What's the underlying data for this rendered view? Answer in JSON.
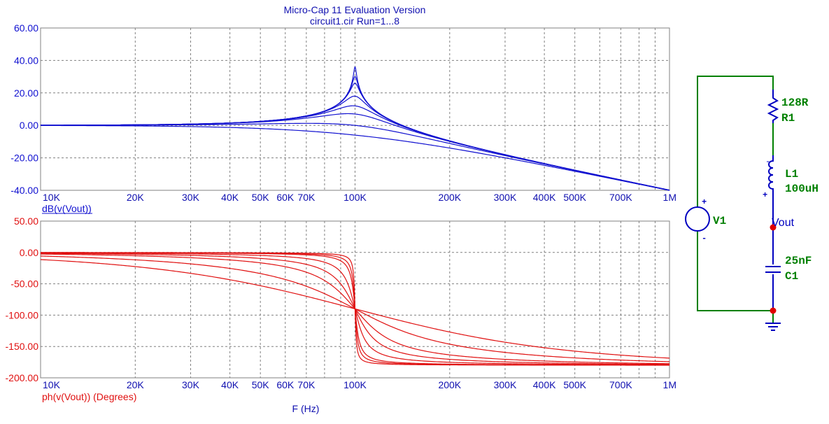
{
  "header": {
    "title": "Micro-Cap 11 Evaluation Version",
    "subtitle": "circuit1.cir Run=1...8"
  },
  "colors": {
    "magnitude": "#1010d0",
    "phase": "#e01010",
    "axis_text_blue": "#1010b0",
    "schematic_wire": "#008000",
    "schematic_part": "#0000c0",
    "node_dot": "#e00000",
    "grid": "#808080"
  },
  "chart_data": [
    {
      "type": "line",
      "name": "magnitude-plot",
      "ylabel": "dB(v(Vout))",
      "xscale": "log",
      "xlim": [
        10000,
        1000000
      ],
      "ylim": [
        -40,
        60
      ],
      "ytick_labels": [
        "60.00",
        "40.00",
        "20.00",
        "0.00",
        "-20.00",
        "-40.00"
      ],
      "xticks": [
        10000,
        20000,
        30000,
        40000,
        50000,
        60000,
        70000,
        100000,
        200000,
        300000,
        400000,
        500000,
        700000,
        1000000
      ],
      "xtick_labels": [
        "10K",
        "20K",
        "30K",
        "40K",
        "50K",
        "60K",
        "70K",
        "100K",
        "200K",
        "300K",
        "400K",
        "500K",
        "700K",
        "1M"
      ],
      "grid": true,
      "series_params": {
        "model": "series RLC low-pass, f0 = 100K",
        "peak_db_at_100K": [
          36,
          30,
          26,
          18,
          12,
          7,
          0,
          -6
        ]
      }
    },
    {
      "type": "line",
      "name": "phase-plot",
      "ylabel": "ph(v(Vout)) (Degrees)",
      "xlabel": "F (Hz)",
      "xscale": "log",
      "xlim": [
        10000,
        1000000
      ],
      "ylim": [
        -200,
        50
      ],
      "ytick_labels": [
        "50.00",
        "0.00",
        "-50.00",
        "-100.00",
        "-150.00",
        "-200.00"
      ],
      "xticks": [
        10000,
        20000,
        30000,
        40000,
        50000,
        60000,
        70000,
        100000,
        200000,
        300000,
        400000,
        500000,
        700000,
        1000000
      ],
      "xtick_labels": [
        "10K",
        "20K",
        "30K",
        "40K",
        "50K",
        "60K",
        "70K",
        "100K",
        "200K",
        "300K",
        "400K",
        "500K",
        "700K",
        "1M"
      ],
      "grid": true,
      "series_params": {
        "model": "series RLC low-pass, f0 = 100K",
        "phase_at_100K": -90,
        "phase_limits": [
          0,
          -180
        ]
      }
    }
  ],
  "schematic": {
    "resistor_value": "128R",
    "resistor_name": "R1",
    "inductor_name": "L1",
    "inductor_value": "100uH",
    "source_name": "V1",
    "node_label": "Vout",
    "capacitor_value": "25nF",
    "capacitor_name": "C1",
    "plus_sign": "+",
    "minus_sign": "-"
  }
}
